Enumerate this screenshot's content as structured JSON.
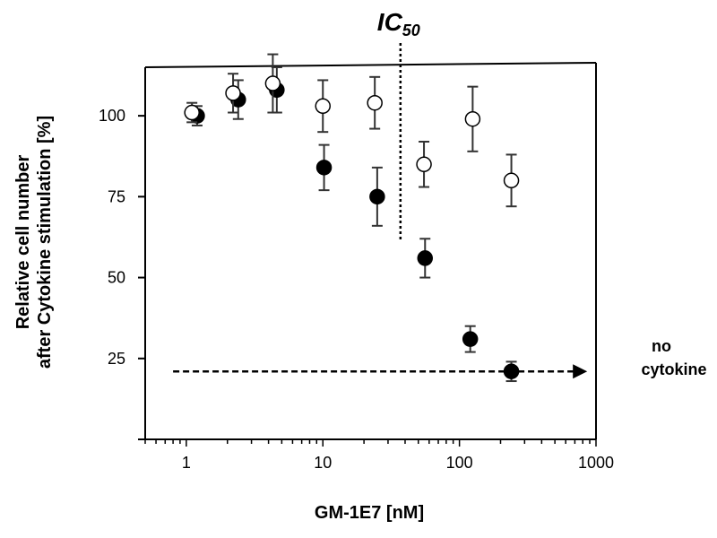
{
  "chart_data": {
    "type": "scatter",
    "x_scale": "log",
    "xlim": [
      0.5,
      1000
    ],
    "ylim": [
      0,
      115
    ],
    "xlabel": "GM-1E7 [nM]",
    "ylabel_line1": "Relative cell number",
    "ylabel_line2": "after Cytokine stimulation [%]",
    "x_ticks": [
      {
        "value": 1,
        "label": "1"
      },
      {
        "value": 10,
        "label": "10"
      },
      {
        "value": 100,
        "label": "100"
      },
      {
        "value": 1000,
        "label": "1000"
      }
    ],
    "y_ticks": [
      {
        "value": 25,
        "label": "25"
      },
      {
        "value": 50,
        "label": "50"
      },
      {
        "value": 75,
        "label": "75"
      },
      {
        "value": 100,
        "label": "100"
      }
    ],
    "series": [
      {
        "marker": "filled",
        "color": "#000000",
        "points": [
          {
            "x": 1.2,
            "y": 100,
            "err": 3
          },
          {
            "x": 2.4,
            "y": 105,
            "err": 6
          },
          {
            "x": 4.6,
            "y": 108,
            "err": 7
          },
          {
            "x": 10.2,
            "y": 84,
            "err": 7
          },
          {
            "x": 25,
            "y": 75,
            "err": 9
          },
          {
            "x": 56,
            "y": 56,
            "err": 6
          },
          {
            "x": 120,
            "y": 31,
            "err": 4
          },
          {
            "x": 240,
            "y": 21,
            "err": 3
          }
        ]
      },
      {
        "marker": "open",
        "color": "#000000",
        "points": [
          {
            "x": 1.1,
            "y": 101,
            "err": 3
          },
          {
            "x": 2.2,
            "y": 107,
            "err": 6
          },
          {
            "x": 4.3,
            "y": 110,
            "err": 9
          },
          {
            "x": 10,
            "y": 103,
            "err": 8
          },
          {
            "x": 24,
            "y": 104,
            "err": 8
          },
          {
            "x": 55,
            "y": 85,
            "err": 7
          },
          {
            "x": 125,
            "y": 99,
            "err": 10
          },
          {
            "x": 240,
            "y": 80,
            "err": 8
          }
        ]
      }
    ],
    "reference_line": {
      "y": 21,
      "x_start": 0.8,
      "x_end": 600,
      "label_line1": "no",
      "label_line2": "cytokine"
    },
    "ic50": {
      "x": 37,
      "label_main": "IC",
      "label_sub": "50"
    }
  }
}
